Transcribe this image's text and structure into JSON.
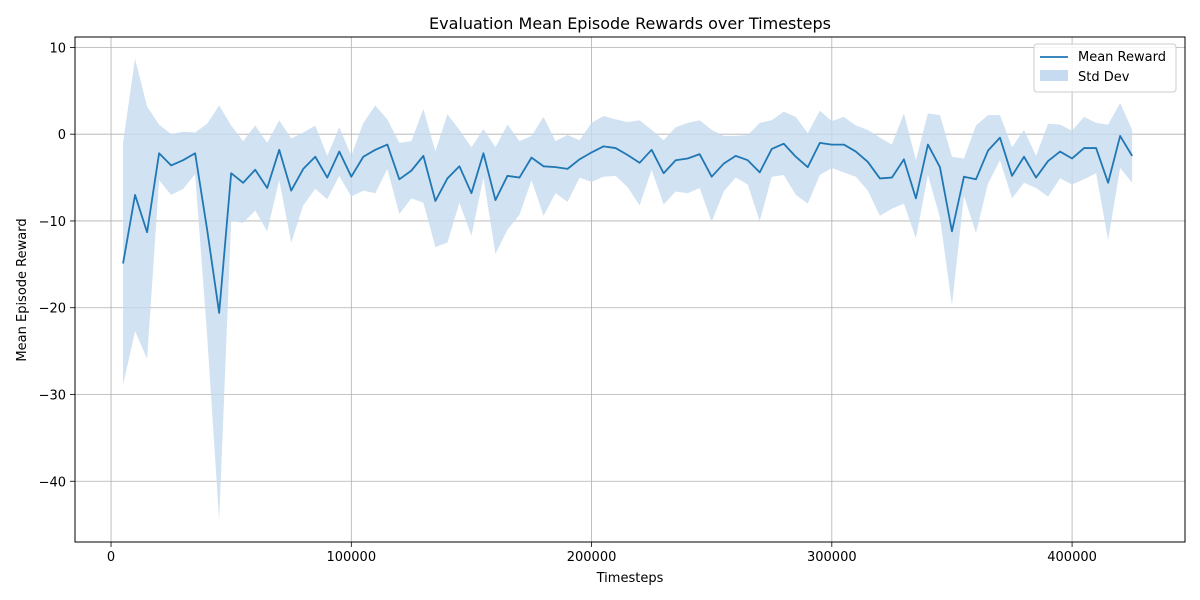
{
  "chart_data": {
    "type": "line",
    "title": "Evaluation Mean Episode Rewards over Timesteps",
    "xlabel": "Timesteps",
    "ylabel": "Mean Episode Reward",
    "xlim": [
      -15000,
      447000
    ],
    "ylim": [
      -47,
      11.2
    ],
    "xticks": [
      0,
      100000,
      200000,
      300000,
      400000
    ],
    "xtick_labels": [
      "0",
      "100000",
      "200000",
      "300000",
      "400000"
    ],
    "yticks": [
      -40,
      -30,
      -20,
      -10,
      0,
      10
    ],
    "ytick_labels": [
      "−40",
      "−30",
      "−20",
      "−10",
      "0",
      "10"
    ],
    "grid": true,
    "legend_position": "top-right",
    "colors": {
      "line": "#1f77b4",
      "band": "#c6dbef"
    },
    "series": [
      {
        "name": "Mean Reward",
        "kind": "line",
        "x": [
          5000,
          10000,
          15000,
          20000,
          25000,
          30000,
          35000,
          40000,
          45000,
          50000,
          55000,
          60000,
          65000,
          70000,
          75000,
          80000,
          85000,
          90000,
          95000,
          100000,
          105000,
          110000,
          115000,
          120000,
          125000,
          130000,
          135000,
          140000,
          145000,
          150000,
          155000,
          160000,
          165000,
          170000,
          175000,
          180000,
          185000,
          190000,
          195000,
          200000,
          205000,
          210000,
          215000,
          220000,
          225000,
          230000,
          235000,
          240000,
          245000,
          250000,
          255000,
          260000,
          265000,
          270000,
          275000,
          280000,
          285000,
          290000,
          295000,
          300000,
          305000,
          310000,
          315000,
          320000,
          325000,
          330000,
          335000,
          340000,
          345000,
          350000,
          355000,
          360000,
          365000,
          370000,
          375000,
          380000,
          385000,
          390000,
          395000,
          400000,
          405000,
          410000,
          415000,
          420000,
          425000
        ],
        "y": [
          -14.9,
          -7.0,
          -11.3,
          -2.2,
          -3.6,
          -3.0,
          -2.2,
          -11.0,
          -20.6,
          -4.5,
          -5.6,
          -4.1,
          -6.2,
          -1.8,
          -6.5,
          -4.0,
          -2.6,
          -5.0,
          -2.0,
          -4.9,
          -2.6,
          -1.8,
          -1.2,
          -5.2,
          -4.2,
          -2.5,
          -7.7,
          -5.1,
          -3.7,
          -6.8,
          -2.2,
          -7.6,
          -4.8,
          -5.0,
          -2.7,
          -3.7,
          -3.8,
          -4.0,
          -2.9,
          -2.1,
          -1.4,
          -1.6,
          -2.4,
          -3.3,
          -1.8,
          -4.5,
          -3.0,
          -2.8,
          -2.3,
          -4.9,
          -3.4,
          -2.5,
          -3.0,
          -4.4,
          -1.7,
          -1.1,
          -2.6,
          -3.8,
          -1.0,
          -1.2,
          -1.2,
          -2.0,
          -3.2,
          -5.1,
          -5.0,
          -2.9,
          -7.4,
          -1.2,
          -3.8,
          -11.2,
          -4.9,
          -5.2,
          -1.9,
          -0.4,
          -4.8,
          -2.6,
          -5.0,
          -3.1,
          -2.0,
          -2.8,
          -1.6,
          -1.6,
          -5.6,
          -0.2,
          -2.5
        ]
      },
      {
        "name": "Std Dev",
        "kind": "band",
        "x": [
          5000,
          10000,
          15000,
          20000,
          25000,
          30000,
          35000,
          40000,
          45000,
          50000,
          55000,
          60000,
          65000,
          70000,
          75000,
          80000,
          85000,
          90000,
          95000,
          100000,
          105000,
          110000,
          115000,
          120000,
          125000,
          130000,
          135000,
          140000,
          145000,
          150000,
          155000,
          160000,
          165000,
          170000,
          175000,
          180000,
          185000,
          190000,
          195000,
          200000,
          205000,
          210000,
          215000,
          220000,
          225000,
          230000,
          235000,
          240000,
          245000,
          250000,
          255000,
          260000,
          265000,
          270000,
          275000,
          280000,
          285000,
          290000,
          295000,
          300000,
          305000,
          310000,
          315000,
          320000,
          325000,
          330000,
          335000,
          340000,
          345000,
          350000,
          355000,
          360000,
          365000,
          370000,
          375000,
          380000,
          385000,
          390000,
          395000,
          400000,
          405000,
          410000,
          415000,
          420000,
          425000
        ],
        "upper": [
          -1.0,
          8.7,
          3.2,
          1.1,
          0.0,
          0.3,
          0.2,
          1.2,
          3.3,
          1.0,
          -0.8,
          1.0,
          -1.0,
          1.6,
          -0.5,
          0.2,
          1.0,
          -2.5,
          0.8,
          -2.5,
          1.3,
          3.3,
          1.7,
          -1.0,
          -0.8,
          2.9,
          -2.0,
          2.3,
          0.5,
          -1.5,
          0.6,
          -1.5,
          1.1,
          -0.8,
          -0.2,
          2.0,
          -0.8,
          -0.1,
          -0.7,
          1.3,
          2.1,
          1.7,
          1.4,
          1.6,
          0.5,
          -0.7,
          0.8,
          1.3,
          1.6,
          0.5,
          -0.2,
          -0.2,
          -0.1,
          1.3,
          1.6,
          2.6,
          2.0,
          0.1,
          2.7,
          1.5,
          2.0,
          1.0,
          0.5,
          -0.4,
          -1.2,
          2.4,
          -3.0,
          2.4,
          2.2,
          -2.6,
          -2.8,
          1.0,
          2.2,
          2.2,
          -1.5,
          0.5,
          -2.5,
          1.2,
          1.1,
          0.4,
          2.0,
          1.3,
          1.1,
          3.6,
          0.5
        ],
        "lower": [
          -28.9,
          -22.7,
          -25.9,
          -5.3,
          -7.0,
          -6.3,
          -4.6,
          -23.2,
          -44.5,
          -10.0,
          -10.2,
          -8.8,
          -11.2,
          -5.3,
          -12.5,
          -8.2,
          -6.3,
          -7.5,
          -4.8,
          -7.2,
          -6.5,
          -6.8,
          -4.0,
          -9.2,
          -7.4,
          -7.9,
          -13.0,
          -12.5,
          -7.9,
          -11.7,
          -5.0,
          -13.8,
          -11.0,
          -9.3,
          -5.3,
          -9.4,
          -6.8,
          -7.8,
          -5.0,
          -5.5,
          -4.9,
          -4.8,
          -6.1,
          -8.2,
          -4.1,
          -8.1,
          -6.6,
          -6.8,
          -6.2,
          -10.1,
          -6.6,
          -5.0,
          -5.8,
          -10.0,
          -4.9,
          -4.7,
          -7.0,
          -8.0,
          -4.7,
          -3.9,
          -4.4,
          -4.9,
          -6.5,
          -9.4,
          -8.6,
          -8.0,
          -12.0,
          -4.7,
          -9.6,
          -19.7,
          -7.1,
          -11.4,
          -5.7,
          -3.0,
          -7.4,
          -5.6,
          -6.2,
          -7.2,
          -5.1,
          -5.8,
          -5.2,
          -4.5,
          -12.2,
          -3.9,
          -5.6
        ]
      }
    ],
    "legend": [
      {
        "label": "Mean Reward",
        "kind": "line"
      },
      {
        "label": "Std Dev",
        "kind": "band"
      }
    ]
  }
}
